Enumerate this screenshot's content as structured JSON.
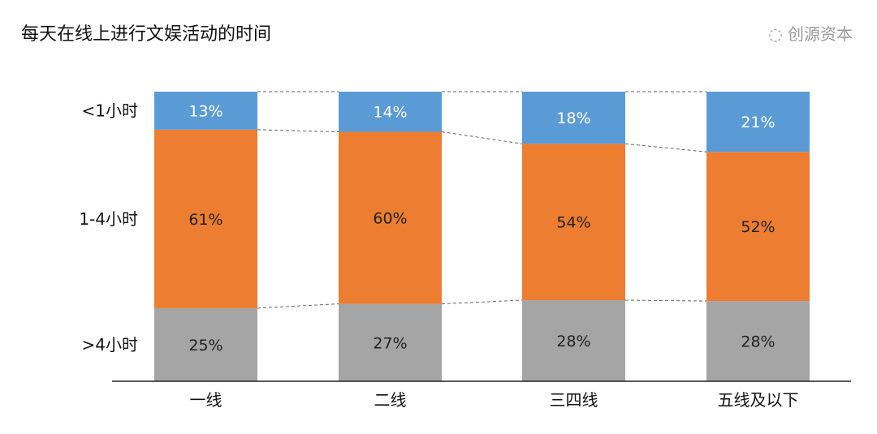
{
  "chart_data": {
    "type": "bar",
    "stacked": true,
    "orientation": "vertical",
    "title": "每天在线上进行文娱活动的时间",
    "categories": [
      "一线",
      "二线",
      "三四线",
      "五线及以下"
    ],
    "series": [
      {
        "name": ">4小时",
        "values": [
          25,
          27,
          28,
          28
        ],
        "color": "#A5A5A5",
        "label_color": "#222222"
      },
      {
        "name": "1-4小时",
        "values": [
          61,
          60,
          54,
          52
        ],
        "color": "#ED7D31",
        "label_color": "#222222"
      },
      {
        "name": "<1小时",
        "values": [
          13,
          14,
          18,
          21
        ],
        "color": "#5B9BD5",
        "label_color": "#ffffff"
      }
    ],
    "value_format": "percent",
    "normalized_100": true,
    "legend": "left-axis-labels",
    "connector_lines": "dashed",
    "grid": false
  },
  "watermark": "创源资本"
}
